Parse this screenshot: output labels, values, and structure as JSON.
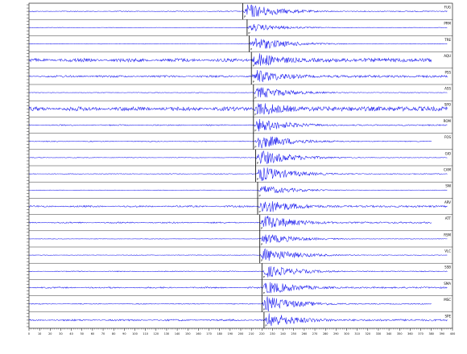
{
  "colors": {
    "background": "#ffffff",
    "trace": "#1a1aee",
    "frame": "#000000",
    "pick_line": "#000000"
  },
  "traces": [
    {
      "station": "FUG",
      "pick": "P",
      "noise": 0.06,
      "onset": 0.505,
      "amp": 1.0
    },
    {
      "station": "PRM",
      "pick": "P",
      "noise": 0.03,
      "onset": 0.515,
      "amp": 0.5
    },
    {
      "station": "TRE",
      "pick": "P",
      "noise": 0.04,
      "onset": 0.52,
      "amp": 0.9
    },
    {
      "station": "AQU",
      "pick": "P",
      "noise": 0.25,
      "onset": 0.525,
      "amp": 1.0
    },
    {
      "station": "PSS",
      "pick": "P",
      "noise": 0.15,
      "onset": 0.525,
      "amp": 0.9
    },
    {
      "station": "ASS",
      "pick": "P",
      "noise": 0.04,
      "onset": 0.53,
      "amp": 0.8
    },
    {
      "station": "SPO",
      "pick": "P",
      "noise": 0.3,
      "onset": 0.53,
      "amp": 1.0
    },
    {
      "station": "ROM",
      "pick": "P",
      "noise": 0.08,
      "onset": 0.53,
      "amp": 0.9
    },
    {
      "station": "FOS",
      "pick": "P",
      "noise": 0.06,
      "onset": 0.53,
      "amp": 1.0
    },
    {
      "station": "GIO",
      "pick": "P",
      "noise": 0.04,
      "onset": 0.535,
      "amp": 1.0
    },
    {
      "station": "CAM",
      "pick": "P",
      "noise": 0.05,
      "onset": 0.535,
      "amp": 1.0
    },
    {
      "station": "SNI",
      "pick": "P",
      "noise": 0.02,
      "onset": 0.54,
      "amp": 0.6
    },
    {
      "station": "ARV",
      "pick": "P",
      "noise": 0.12,
      "onset": 0.54,
      "amp": 1.0
    },
    {
      "station": "ATT",
      "pick": "P",
      "noise": 0.1,
      "onset": 0.545,
      "amp": 1.0
    },
    {
      "station": "RSM",
      "pick": "P",
      "noise": 0.03,
      "onset": 0.545,
      "amp": 0.7
    },
    {
      "station": "VLC",
      "pick": "P",
      "noise": 0.04,
      "onset": 0.545,
      "amp": 0.9
    },
    {
      "station": "SSB",
      "pick": "P",
      "noise": 0.06,
      "onset": 0.55,
      "amp": 0.8
    },
    {
      "station": "SMA",
      "pick": "P",
      "noise": 0.1,
      "onset": 0.55,
      "amp": 0.9
    },
    {
      "station": "MSC",
      "pick": "P",
      "noise": 0.06,
      "onset": 0.55,
      "amp": 1.0
    },
    {
      "station": "SPE",
      "pick": "P",
      "noise": 0.12,
      "onset": 0.555,
      "amp": 1.0
    }
  ],
  "time_axis": {
    "labels": [
      "0",
      "10",
      "20",
      "30",
      "40",
      "50",
      "60",
      "70",
      "80",
      "90",
      "100",
      "110",
      "120",
      "130",
      "140",
      "150",
      "160",
      "170",
      "180",
      "190",
      "200",
      "210",
      "220",
      "230",
      "240",
      "250",
      "260",
      "270",
      "280",
      "290",
      "300",
      "310",
      "320",
      "330",
      "340",
      "350",
      "360",
      "370",
      "380",
      "390",
      "400"
    ]
  }
}
